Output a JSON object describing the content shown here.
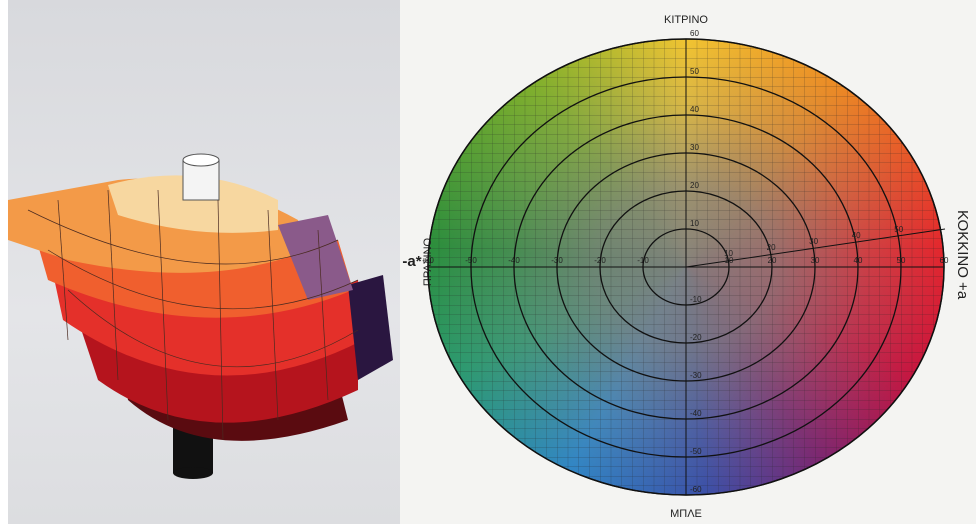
{
  "labels": {
    "top": "ΚΙΤΡΙΝΟ",
    "bottom": "ΜΠΛΕ",
    "left": "ΠΡΑΣΙΝΟ",
    "left_axis": "-a*",
    "right": "ΚΟΚΚΙΝΟ +a"
  },
  "axis_ticks": [
    -60,
    -50,
    -40,
    -30,
    -20,
    -10,
    10,
    20,
    30,
    40,
    50,
    60
  ],
  "diagonal_ticks": [
    10,
    20,
    30,
    40,
    50
  ]
}
